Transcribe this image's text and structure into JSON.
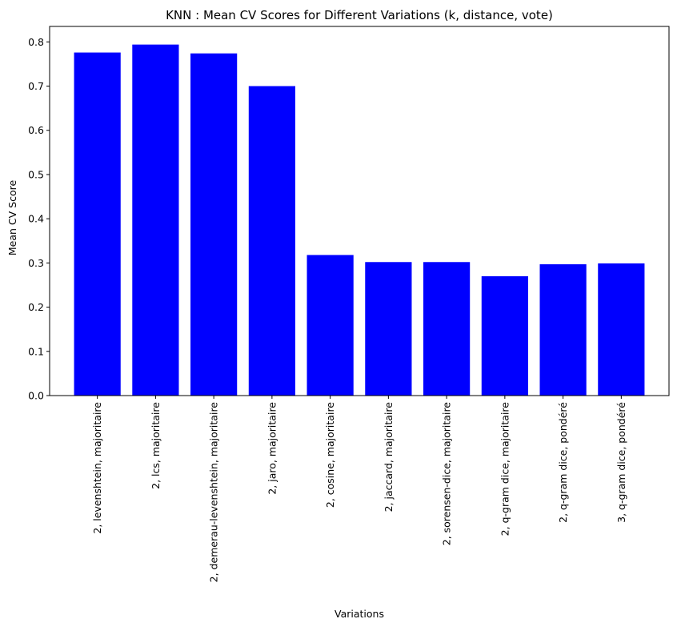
{
  "chart_data": {
    "type": "bar",
    "title": "KNN : Mean CV Scores for Different Variations (k, distance, vote)",
    "xlabel": "Variations",
    "ylabel": "Mean CV Score",
    "categories": [
      "2, levenshtein, majoritaire",
      "2, lcs, majoritaire",
      "2, demerau-levenshtein, majoritaire",
      "2, jaro, majoritaire",
      "2, cosine, majoritaire",
      "2, jaccard, majoritaire",
      "2, sorensen-dice, majoritaire",
      "2, q-gram dice, majoritaire",
      "2, q-gram dice, pondéré",
      "3, q-gram dice, pondéré"
    ],
    "values": [
      0.776,
      0.794,
      0.774,
      0.7,
      0.318,
      0.302,
      0.302,
      0.27,
      0.297,
      0.299
    ],
    "ylim": [
      0,
      0.835
    ],
    "yticks": [
      0.0,
      0.1,
      0.2,
      0.3,
      0.4,
      0.5,
      0.6,
      0.7,
      0.8
    ],
    "ytick_labels": [
      "0.0",
      "0.1",
      "0.2",
      "0.3",
      "0.4",
      "0.5",
      "0.6",
      "0.7",
      "0.8"
    ],
    "bar_color": "#0000ff",
    "grid": false,
    "legend": "none"
  }
}
